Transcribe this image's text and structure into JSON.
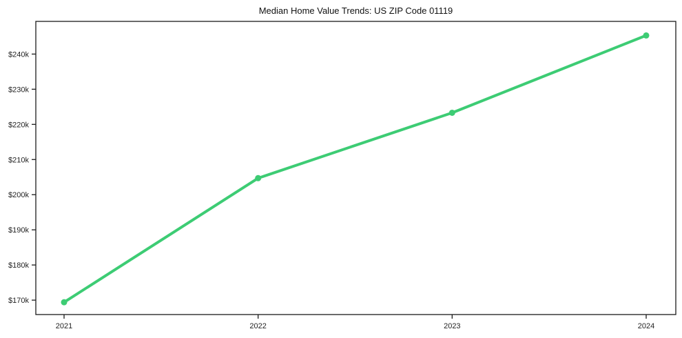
{
  "chart_data": {
    "type": "line",
    "title": "Median Home Value Trends: US ZIP Code 01119",
    "xlabel": "",
    "ylabel": "",
    "categories": [
      "2021",
      "2022",
      "2023",
      "2024"
    ],
    "series": [
      {
        "name": "Median Home Value",
        "values": [
          169400,
          204700,
          223300,
          245300
        ]
      }
    ],
    "y_ticks": [
      {
        "value": 170000,
        "label": "$170k"
      },
      {
        "value": 180000,
        "label": "$180k"
      },
      {
        "value": 190000,
        "label": "$190k"
      },
      {
        "value": 200000,
        "label": "$200k"
      },
      {
        "value": 210000,
        "label": "$210k"
      },
      {
        "value": 220000,
        "label": "$220k"
      },
      {
        "value": 230000,
        "label": "$230k"
      },
      {
        "value": 240000,
        "label": "$240k"
      }
    ],
    "ylim": [
      165900,
      249300
    ],
    "grid": false,
    "legend": "none",
    "colors": {
      "line": "#3dcc74",
      "axis": "#1a1a1a",
      "text": "#222222",
      "background": "#ffffff"
    }
  }
}
